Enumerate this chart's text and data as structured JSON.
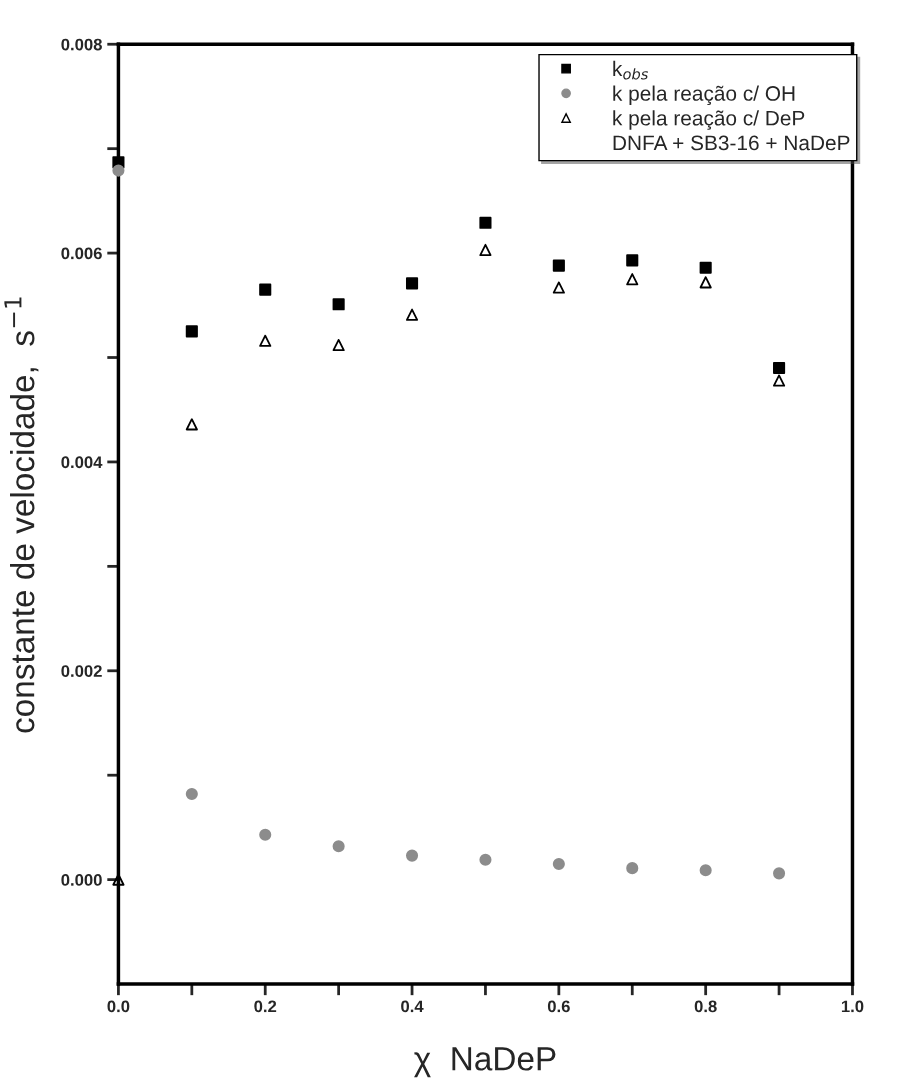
{
  "chart_data": {
    "type": "scatter",
    "xlabel": "χ  NaDeP",
    "ylabel": "constante de velocidade,  s$^{−1}$",
    "x": [
      0.0,
      0.1,
      0.2,
      0.3,
      0.4,
      0.5,
      0.6,
      0.7,
      0.8,
      0.9
    ],
    "series": [
      {
        "name": "k$_{obs}$",
        "color": "#000000",
        "marker": "square",
        "values": [
          0.00687,
          0.00525,
          0.00565,
          0.00551,
          0.00571,
          0.00629,
          0.00588,
          0.00593,
          0.00586,
          0.0049
        ]
      },
      {
        "name": "k pela reação c/ OH",
        "color": "#8c8c8c",
        "marker": "circle",
        "values": [
          0.00679,
          0.00082,
          0.00043,
          0.00032,
          0.00023,
          0.00019,
          0.00015,
          0.00011,
          9e-05,
          6e-05
        ]
      },
      {
        "name": "k pela reação c/ DeP",
        "color": "#000000",
        "marker": "triangle",
        "values": [
          0.0,
          0.00436,
          0.00516,
          0.00512,
          0.00541,
          0.00603,
          0.00567,
          0.00575,
          0.00572,
          0.00478
        ]
      }
    ],
    "annotations": [
      "DNFA + SB3-16 + NaDeP"
    ],
    "xlim": [
      0.0,
      1.0
    ],
    "xticks": [
      {
        "value": 0.0,
        "label": "0.0"
      },
      {
        "value": 0.1,
        "label": null
      },
      {
        "value": 0.2,
        "label": "0.2"
      },
      {
        "value": 0.3,
        "label": null
      },
      {
        "value": 0.4,
        "label": "0.4"
      },
      {
        "value": 0.5,
        "label": null
      },
      {
        "value": 0.6,
        "label": "0.6"
      },
      {
        "value": 0.7,
        "label": null
      },
      {
        "value": 0.8,
        "label": "0.8"
      },
      {
        "value": 0.9,
        "label": null
      },
      {
        "value": 1.0,
        "label": "1.0"
      }
    ],
    "ylim": [
      -0.001,
      0.008
    ],
    "yticks": [
      {
        "value": 0.0,
        "label": "0.000"
      },
      {
        "value": 0.001,
        "label": null
      },
      {
        "value": 0.002,
        "label": "0.002"
      },
      {
        "value": 0.003,
        "label": null
      },
      {
        "value": 0.004,
        "label": "0.004"
      },
      {
        "value": 0.005,
        "label": null
      },
      {
        "value": 0.006,
        "label": "0.006"
      },
      {
        "value": 0.007,
        "label": null
      },
      {
        "value": 0.008,
        "label": "0.008"
      }
    ],
    "grid": false,
    "legend": "top right"
  }
}
